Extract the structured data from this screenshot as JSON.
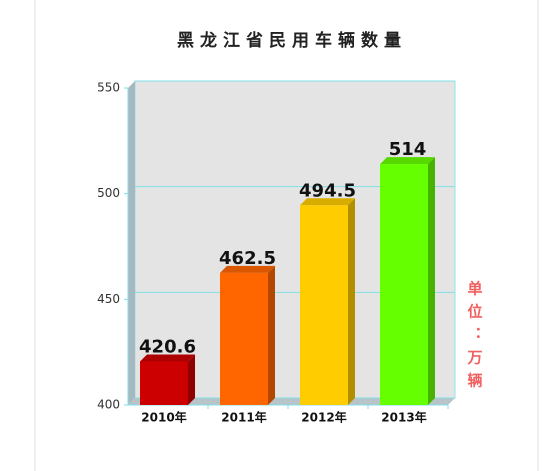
{
  "chart_data": {
    "type": "bar3d",
    "title": "黑龙江省民用车辆数量",
    "unit_label": "单位：万辆",
    "categories": [
      "2010年",
      "2011年",
      "2012年",
      "2013年"
    ],
    "values": [
      420.6,
      462.5,
      494.5,
      514
    ],
    "colors": [
      "#cc0000",
      "#ff6600",
      "#ffcc00",
      "#66ff00"
    ],
    "ylim": [
      400,
      550
    ],
    "yticks": [
      400,
      450,
      500,
      550
    ],
    "grid": true
  }
}
